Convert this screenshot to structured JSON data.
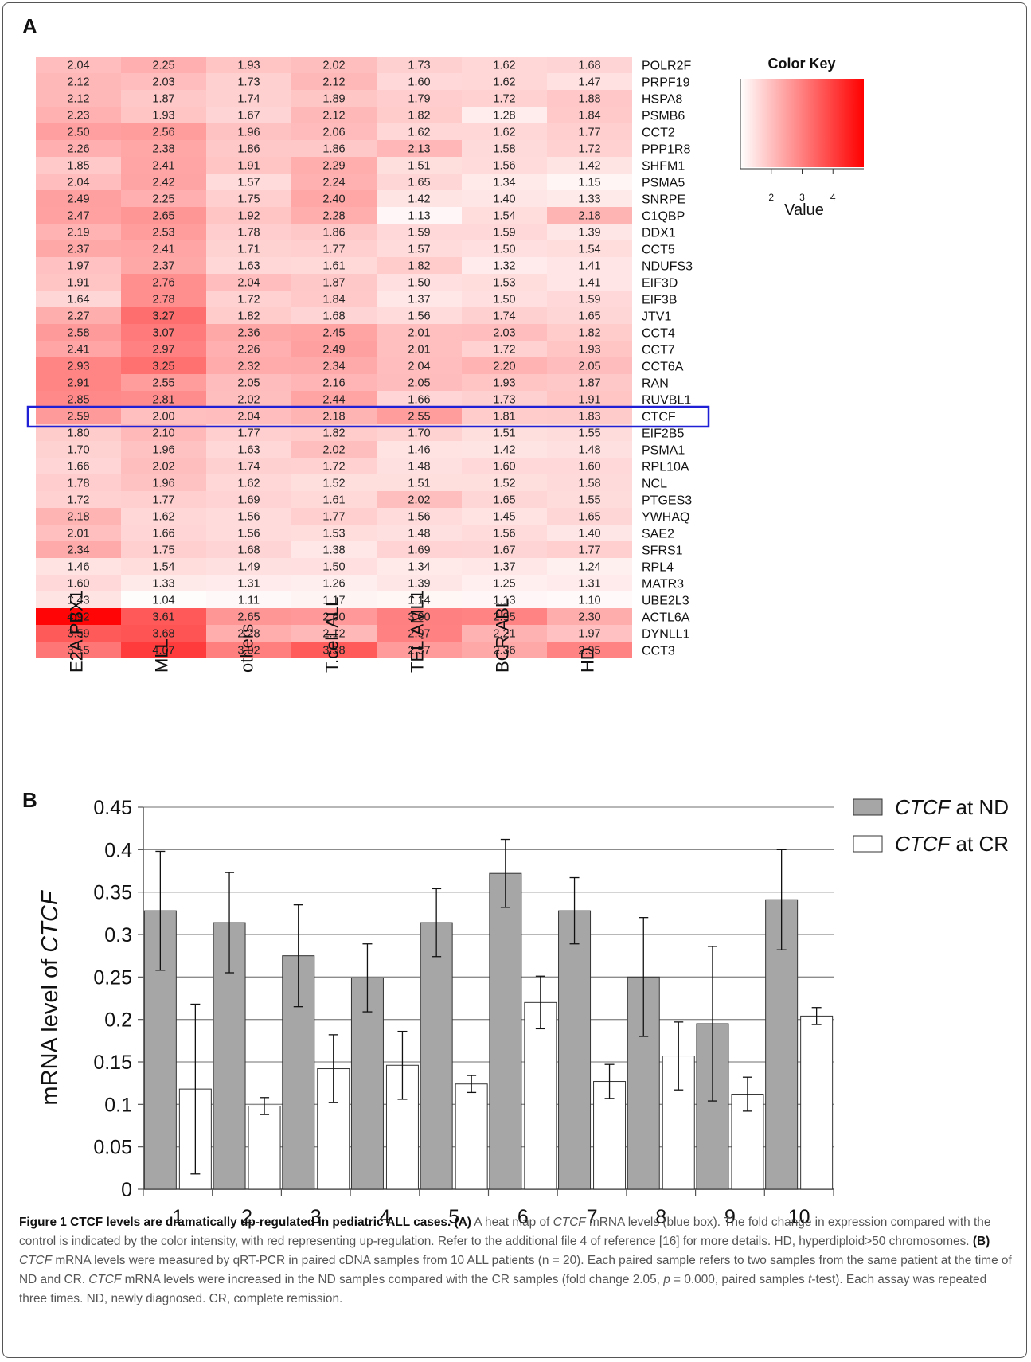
{
  "panels": {
    "a_label": "A",
    "b_label": "B"
  },
  "chart_data": [
    {
      "type": "heatmap",
      "columns": [
        "E2A.PBX1",
        "MLL",
        "others",
        "T.cell.ALL",
        "TEL.AML1",
        "BCR.ABL",
        "HD"
      ],
      "rows": [
        "POLR2F",
        "PRPF19",
        "HSPA8",
        "PSMB6",
        "CCT2",
        "PPP1R8",
        "SHFM1",
        "PSMA5",
        "SNRPE",
        "C1QBP",
        "DDX1",
        "CCT5",
        "NDUFS3",
        "EIF3D",
        "EIF3B",
        "JTV1",
        "CCT4",
        "CCT7",
        "CCT6A",
        "RAN",
        "RUVBL1",
        "CTCF",
        "EIF2B5",
        "PSMA1",
        "RPL10A",
        "NCL",
        "PTGES3",
        "YWHAQ",
        "SAE2",
        "SFRS1",
        "RPL4",
        "MATR3",
        "UBE2L3",
        "ACTL6A",
        "DYNLL1",
        "CCT3"
      ],
      "values": [
        [
          "2.04",
          "2.25",
          "1.93",
          "2.02",
          "1.73",
          "1.62",
          "1.68"
        ],
        [
          "2.12",
          "2.03",
          "1.73",
          "2.12",
          "1.60",
          "1.62",
          "1.47"
        ],
        [
          "2.12",
          "1.87",
          "1.74",
          "1.89",
          "1.79",
          "1.72",
          "1.88"
        ],
        [
          "2.23",
          "1.93",
          "1.67",
          "2.12",
          "1.82",
          "1.28",
          "1.84"
        ],
        [
          "2.50",
          "2.56",
          "1.96",
          "2.06",
          "1.62",
          "1.62",
          "1.77"
        ],
        [
          "2.26",
          "2.38",
          "1.86",
          "1.86",
          "2.13",
          "1.58",
          "1.72"
        ],
        [
          "1.85",
          "2.41",
          "1.91",
          "2.29",
          "1.51",
          "1.56",
          "1.42"
        ],
        [
          "2.04",
          "2.42",
          "1.57",
          "2.24",
          "1.65",
          "1.34",
          "1.15"
        ],
        [
          "2.49",
          "2.25",
          "1.75",
          "2.40",
          "1.42",
          "1.40",
          "1.33"
        ],
        [
          "2.47",
          "2.65",
          "1.92",
          "2.28",
          "1.13",
          "1.54",
          "2.18"
        ],
        [
          "2.19",
          "2.53",
          "1.78",
          "1.86",
          "1.59",
          "1.59",
          "1.39"
        ],
        [
          "2.37",
          "2.41",
          "1.71",
          "1.77",
          "1.57",
          "1.50",
          "1.54"
        ],
        [
          "1.97",
          "2.37",
          "1.63",
          "1.61",
          "1.82",
          "1.32",
          "1.41"
        ],
        [
          "1.91",
          "2.76",
          "2.04",
          "1.87",
          "1.50",
          "1.53",
          "1.41"
        ],
        [
          "1.64",
          "2.78",
          "1.72",
          "1.84",
          "1.37",
          "1.50",
          "1.59"
        ],
        [
          "2.27",
          "3.27",
          "1.82",
          "1.68",
          "1.56",
          "1.74",
          "1.65"
        ],
        [
          "2.58",
          "3.07",
          "2.36",
          "2.45",
          "2.01",
          "2.03",
          "1.82"
        ],
        [
          "2.41",
          "2.97",
          "2.26",
          "2.49",
          "2.01",
          "1.72",
          "1.93"
        ],
        [
          "2.93",
          "3.25",
          "2.32",
          "2.34",
          "2.04",
          "2.20",
          "2.05"
        ],
        [
          "2.91",
          "2.55",
          "2.05",
          "2.16",
          "2.05",
          "1.93",
          "1.87"
        ],
        [
          "2.85",
          "2.81",
          "2.02",
          "2.44",
          "1.66",
          "1.73",
          "1.91"
        ],
        [
          "2.59",
          "2.00",
          "2.04",
          "2.18",
          "2.55",
          "1.81",
          "1.83"
        ],
        [
          "1.80",
          "2.10",
          "1.77",
          "1.82",
          "1.70",
          "1.51",
          "1.55"
        ],
        [
          "1.70",
          "1.96",
          "1.63",
          "2.02",
          "1.46",
          "1.42",
          "1.48"
        ],
        [
          "1.66",
          "2.02",
          "1.74",
          "1.72",
          "1.48",
          "1.60",
          "1.60"
        ],
        [
          "1.78",
          "1.96",
          "1.62",
          "1.52",
          "1.51",
          "1.52",
          "1.58"
        ],
        [
          "1.72",
          "1.77",
          "1.69",
          "1.61",
          "2.02",
          "1.65",
          "1.55"
        ],
        [
          "2.18",
          "1.62",
          "1.56",
          "1.77",
          "1.56",
          "1.45",
          "1.65"
        ],
        [
          "2.01",
          "1.66",
          "1.56",
          "1.53",
          "1.48",
          "1.56",
          "1.40"
        ],
        [
          "2.34",
          "1.75",
          "1.68",
          "1.38",
          "1.69",
          "1.67",
          "1.77"
        ],
        [
          "1.46",
          "1.54",
          "1.49",
          "1.50",
          "1.34",
          "1.37",
          "1.24"
        ],
        [
          "1.60",
          "1.33",
          "1.31",
          "1.26",
          "1.39",
          "1.25",
          "1.31"
        ],
        [
          "1.43",
          "1.04",
          "1.11",
          "1.17",
          "1.14",
          "1.13",
          "1.10"
        ],
        [
          "4.92",
          "3.61",
          "2.65",
          "2.60",
          "3.00",
          "2.95",
          "2.30"
        ],
        [
          "3.59",
          "3.68",
          "2.28",
          "2.12",
          "2.97",
          "2.21",
          "1.97"
        ],
        [
          "3.15",
          "4.07",
          "3.02",
          "3.58",
          "2.57",
          "2.36",
          "2.95"
        ]
      ],
      "highlighted_row": "CTCF",
      "highlight_color": "#1f1fd6",
      "color_scale": {
        "low": "#ffffff",
        "high": "#ff0000",
        "range": [
          1,
          5
        ]
      },
      "color_key": {
        "title": "Color Key",
        "ticks": [
          "2",
          "3",
          "4"
        ],
        "xlabel": "Value"
      }
    },
    {
      "type": "bar",
      "categories": [
        "1",
        "2",
        "3",
        "4",
        "5",
        "6",
        "7",
        "8",
        "9",
        "10"
      ],
      "series": [
        {
          "name": "CTCF at ND",
          "color": "#a6a6a6",
          "values": [
            0.328,
            0.314,
            0.275,
            0.249,
            0.314,
            0.372,
            0.328,
            0.25,
            0.195,
            0.341
          ],
          "errors": [
            0.07,
            0.059,
            0.06,
            0.04,
            0.04,
            0.04,
            0.039,
            0.07,
            0.091,
            0.059
          ]
        },
        {
          "name": "CTCF at CR",
          "color": "#ffffff",
          "values": [
            0.118,
            0.098,
            0.142,
            0.146,
            0.124,
            0.22,
            0.127,
            0.157,
            0.112,
            0.204
          ],
          "errors": [
            0.1,
            0.01,
            0.04,
            0.04,
            0.01,
            0.031,
            0.02,
            0.04,
            0.02,
            0.01
          ]
        }
      ],
      "legend_names": [
        {
          "italic": "CTCF",
          "rest": " at ND"
        },
        {
          "italic": "CTCF",
          "rest": " at CR"
        }
      ],
      "ylabel_prefix": "mRNA level of ",
      "ylabel_italic": "CTCF",
      "ylim": [
        0,
        0.45
      ],
      "yticks": [
        "0",
        "0.05",
        "0.1",
        "0.15",
        "0.2",
        "0.25",
        "0.3",
        "0.35",
        "0.4",
        "0.45"
      ],
      "grid": true,
      "legend_position": "top-right"
    }
  ],
  "caption": {
    "title": "Figure 1 CTCF levels are dramatically up-regulated in pediatric ALL cases.",
    "a_tag": "(A)",
    "a_text_1": " A heat map of ",
    "a_text_1_italic": "CTCF",
    "a_text_2": " mRNA levels (blue box). The fold change in expression compared with the control is indicated by the color intensity, with red representing up-regulation. Refer to the additional file 4 of reference [16] for more details. HD, hyperdiploid>50 chromosomes. ",
    "b_tag": "(B)",
    "b_italic_1": " CTCF",
    "b_text_1": " mRNA levels were measured by qRT-PCR in paired cDNA samples from 10 ALL patients (n = 20). Each paired sample refers to two samples from the same patient at the time of ND and CR. ",
    "b_italic_2": "CTCF",
    "b_text_2": " mRNA levels were increased in the ND samples compared with the CR samples (fold change 2.05, ",
    "b_italic_3": "p",
    "b_text_3": " = 0.000, paired samples ",
    "b_italic_4": "t",
    "b_text_4": "-test). Each assay was repeated three times. ND, newly diagnosed. CR, complete remission."
  }
}
